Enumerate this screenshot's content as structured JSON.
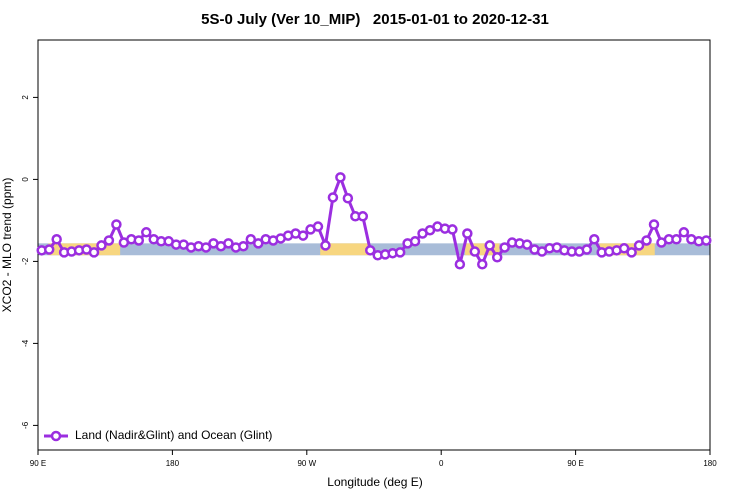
{
  "chart_data": {
    "type": "line",
    "title": "5S-0 July (Ver 10_MIP)   2015-01-01 to 2020-12-31",
    "x_label": "Longitude (deg E)",
    "y_label": "XCO2 - MLO trend (ppm)",
    "xlim": [
      90,
      540
    ],
    "ylim": [
      -6.6,
      3.4
    ],
    "xticks": [
      {
        "value": 90,
        "label": "90 E"
      },
      180,
      {
        "value": 270,
        "label": "90 W"
      },
      {
        "value": 360,
        "label": "0"
      },
      {
        "value": 450,
        "label": "90 E"
      },
      {
        "value": 540,
        "label": "180"
      }
    ],
    "yticks": [
      -6,
      -4,
      -2,
      0,
      2
    ],
    "legend": "bottom-left",
    "bands": [
      {
        "xlim": [
          90,
          540
        ],
        "ylim": [
          -1.85,
          -1.56
        ],
        "color": "#a8bcd8"
      },
      {
        "xlim": [
          97,
          145
        ],
        "ylim": [
          -1.85,
          -1.56
        ],
        "color": "#f7d680"
      },
      {
        "xlim": [
          279,
          312
        ],
        "ylim": [
          -1.85,
          -1.56
        ],
        "color": "#f7d680"
      },
      {
        "xlim": [
          376,
          399
        ],
        "ylim": [
          -1.85,
          -1.56
        ],
        "color": "#f7d680"
      },
      {
        "xlim": [
          466,
          503
        ],
        "ylim": [
          -1.85,
          -1.56
        ],
        "color": "#f7d680"
      }
    ],
    "x": [
      92.5,
      97.5,
      102.5,
      107.5,
      112.5,
      117.5,
      122.5,
      127.5,
      132.5,
      137.5,
      142.5,
      147.5,
      152.5,
      157.5,
      162.5,
      167.5,
      172.5,
      177.5,
      182.5,
      187.5,
      192.5,
      197.5,
      202.5,
      207.5,
      212.5,
      217.5,
      222.5,
      227.5,
      232.5,
      237.5,
      242.5,
      247.5,
      252.5,
      257.5,
      262.5,
      267.5,
      272.5,
      277.5,
      282.5,
      287.5,
      292.5,
      297.5,
      302.5,
      307.5,
      312.5,
      317.5,
      322.5,
      327.5,
      332.5,
      337.5,
      342.5,
      347.5,
      352.5,
      357.5,
      362.5,
      367.5,
      372.5,
      377.5,
      382.5,
      387.5,
      392.5,
      397.5,
      402.5,
      407.5,
      412.5,
      417.5,
      422.5,
      427.5,
      432.5,
      437.5,
      442.5,
      447.5,
      452.5,
      457.5,
      462.5,
      467.5,
      472.5,
      477.5,
      482.5,
      487.5,
      492.5,
      497.5,
      502.5,
      507.5,
      512.5,
      517.5,
      522.5,
      527.5,
      532.5,
      537.5
    ],
    "series": [
      {
        "name": "Land (Nadir&Glint) and Ocean (Glint)",
        "color": "#9b2ee0",
        "values": [
          -1.73,
          -1.71,
          -1.46,
          -1.78,
          -1.76,
          -1.73,
          -1.71,
          -1.78,
          -1.61,
          -1.49,
          -1.1,
          -1.54,
          -1.46,
          -1.49,
          -1.29,
          -1.46,
          -1.51,
          -1.51,
          -1.59,
          -1.59,
          -1.66,
          -1.63,
          -1.66,
          -1.56,
          -1.63,
          -1.56,
          -1.66,
          -1.63,
          -1.46,
          -1.56,
          -1.46,
          -1.49,
          -1.44,
          -1.37,
          -1.32,
          -1.37,
          -1.22,
          -1.15,
          -1.61,
          -0.44,
          0.05,
          -0.46,
          -0.9,
          -0.9,
          -1.73,
          -1.85,
          -1.83,
          -1.8,
          -1.78,
          -1.56,
          -1.51,
          -1.32,
          -1.24,
          -1.15,
          -1.2,
          -1.22,
          -2.07,
          -1.32,
          -1.76,
          -2.07,
          -1.61,
          -1.9,
          -1.66,
          -1.54,
          -1.56,
          -1.59,
          -1.71,
          -1.76,
          -1.68,
          -1.66,
          -1.73,
          -1.76,
          -1.76,
          -1.71,
          -1.46,
          -1.78,
          -1.76,
          -1.73,
          -1.68,
          -1.78,
          -1.61,
          -1.49,
          -1.1,
          -1.54,
          -1.46,
          -1.46,
          -1.29,
          -1.46,
          -1.51,
          -1.49
        ]
      }
    ]
  }
}
